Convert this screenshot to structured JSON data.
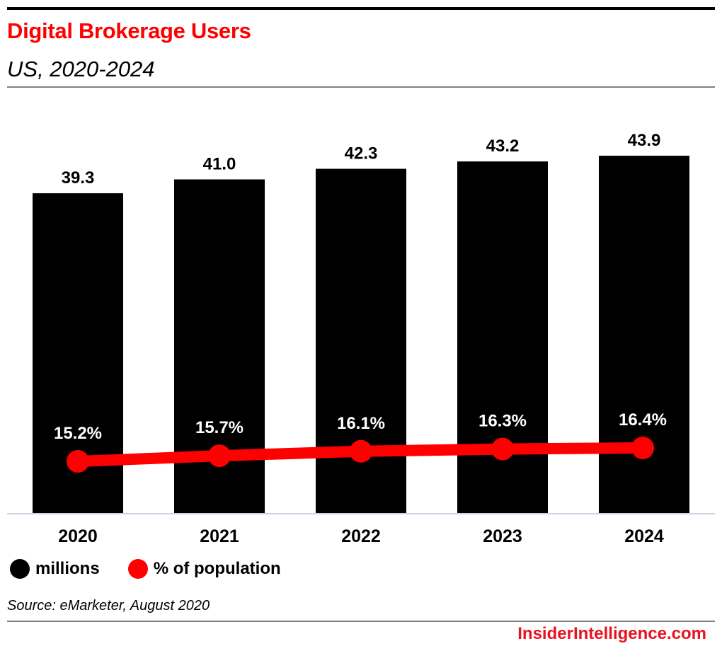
{
  "header": {
    "title": "Digital Brokerage Users",
    "subtitle": "US, 2020-2024"
  },
  "colors": {
    "bar": "#000000",
    "line": "#ff0000",
    "title": "#ff0000",
    "brand": "#e8121f",
    "baseline": "#c8d4e6"
  },
  "chart_data": {
    "type": "bar",
    "title": "Digital Brokerage Users",
    "subtitle": "US, 2020-2024",
    "categories": [
      "2020",
      "2021",
      "2022",
      "2023",
      "2024"
    ],
    "series": [
      {
        "name": "millions",
        "type": "bar",
        "values": [
          39.3,
          41.0,
          42.3,
          43.2,
          43.9
        ],
        "labels": [
          "39.3",
          "41.0",
          "42.3",
          "43.2",
          "43.9"
        ]
      },
      {
        "name": "% of population",
        "type": "line",
        "values": [
          15.2,
          15.7,
          16.1,
          16.3,
          16.4
        ],
        "labels": [
          "15.2%",
          "15.7%",
          "16.1%",
          "16.3%",
          "16.4%"
        ]
      }
    ],
    "xlabel": "",
    "ylabel": "",
    "ylim": [
      0,
      63
    ],
    "grid": false,
    "legend": "bottom-left"
  },
  "legend": [
    {
      "label": "millions",
      "color": "#000000"
    },
    {
      "label": "% of population",
      "color": "#ff0000"
    }
  ],
  "footer": {
    "source": "Source: eMarketer, August 2020",
    "brand": "InsiderIntelligence.com"
  }
}
